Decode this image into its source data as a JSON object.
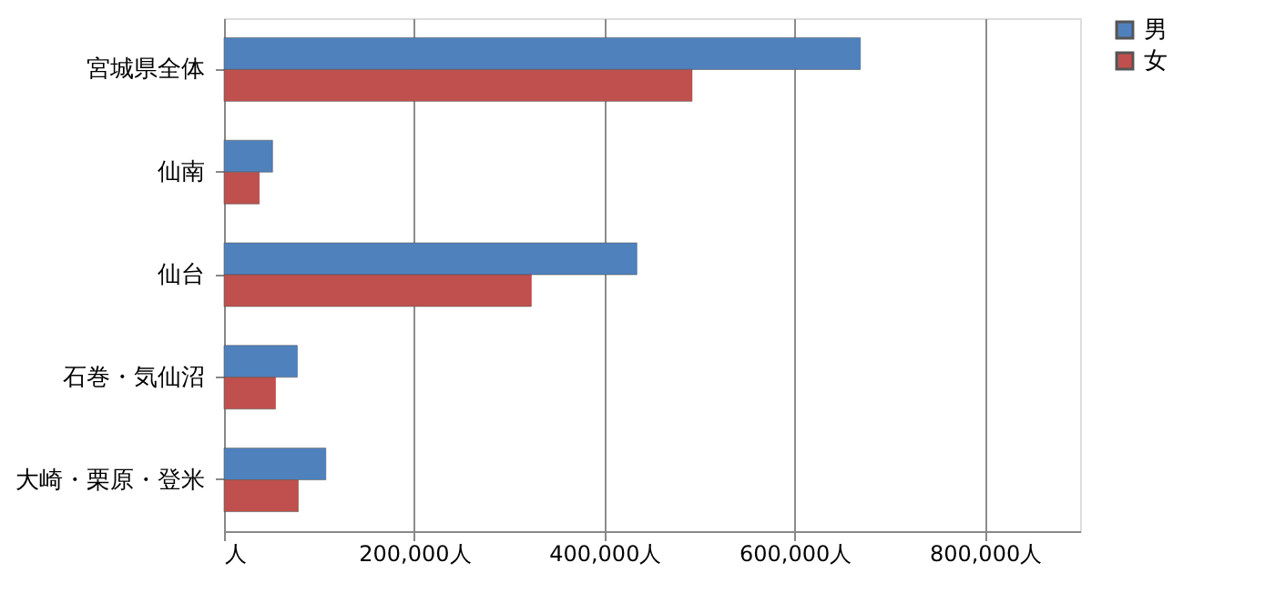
{
  "chart_data": {
    "type": "bar",
    "orientation": "horizontal",
    "categories": [
      "宮城県全体",
      "仙南",
      "仙台",
      "石巻・気仙沼",
      "大崎・栗原・登米"
    ],
    "series": [
      {
        "name": "男",
        "color": "#4f81bd",
        "values": [
          669000,
          51000,
          434000,
          77000,
          107000
        ]
      },
      {
        "name": "女",
        "color": "#c0504d",
        "values": [
          492000,
          37000,
          323000,
          54000,
          78000
        ]
      }
    ],
    "xlim": [
      0,
      900000
    ],
    "xticks": [
      {
        "value": 0,
        "label": "人"
      },
      {
        "value": 200000,
        "label": "200,000人"
      },
      {
        "value": 400000,
        "label": "400,000人"
      },
      {
        "value": 600000,
        "label": "600,000人"
      },
      {
        "value": 800000,
        "label": "800,000人"
      }
    ],
    "grid": "x",
    "legend": "right"
  }
}
